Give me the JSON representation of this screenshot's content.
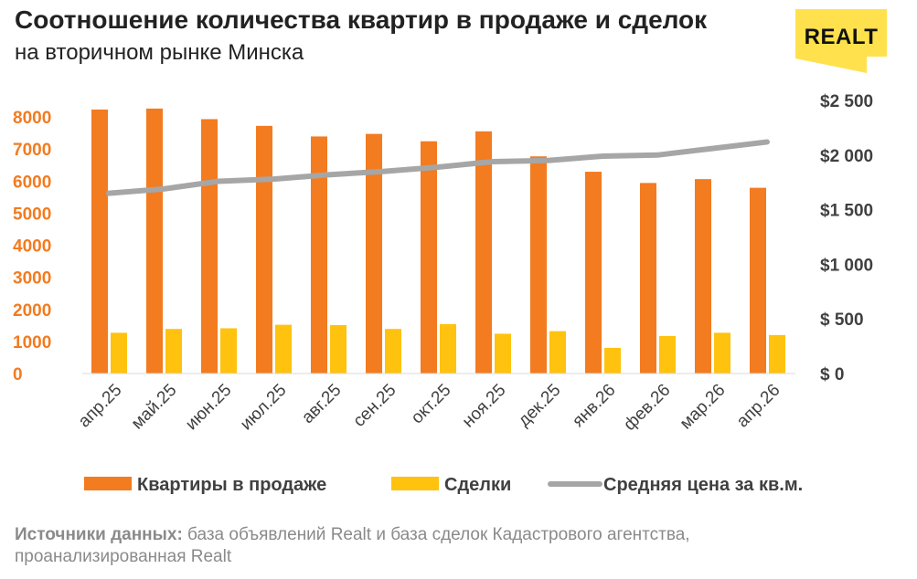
{
  "header": {
    "title": "Соотношение количества квартир в продаже и сделок",
    "subtitle": "на вторичном рынке Минска",
    "logo_text": "REALT"
  },
  "source": {
    "label": "Источники данных:",
    "text": " база объявлений Realt и база сделок Кадастрового агентства, проанализированная Realt"
  },
  "colors": {
    "listings": "#F37B20",
    "deals": "#FFC20E",
    "price": "#A6A6A6",
    "logo_bg": "#FFE14D"
  },
  "chart_data": {
    "type": "bar",
    "categories": [
      "апр.25",
      "май.25",
      "июн.25",
      "июл.25",
      "авг.25",
      "сен.25",
      "окт.25",
      "ноя.25",
      "дек.25",
      "янв.26",
      "фев.26",
      "мар.26",
      "апр.26"
    ],
    "series": [
      {
        "name": "Квартиры в продаже",
        "type": "bar",
        "axis": "left",
        "values": [
          8230,
          8260,
          7930,
          7720,
          7390,
          7470,
          7240,
          7550,
          6770,
          6290,
          5940,
          6060,
          5790
        ]
      },
      {
        "name": "Сделки",
        "type": "bar",
        "axis": "left",
        "values": [
          1270,
          1390,
          1410,
          1520,
          1510,
          1390,
          1540,
          1240,
          1320,
          800,
          1170,
          1270,
          1200
        ]
      },
      {
        "name": "Средняя цена за кв.м.",
        "type": "line",
        "axis": "right",
        "values": [
          1650,
          1690,
          1760,
          1780,
          1820,
          1850,
          1890,
          1940,
          1950,
          1990,
          2000,
          2060,
          2120
        ]
      }
    ],
    "y_left": {
      "min": 0,
      "max": 8000,
      "ticks": [
        "0",
        "1000",
        "2000",
        "3000",
        "4000",
        "5000",
        "6000",
        "7000",
        "8000"
      ]
    },
    "y_right": {
      "min": 0,
      "max": 2500,
      "ticks": [
        "$ 0",
        "$ 500",
        "$1 000",
        "$1 500",
        "$2 000",
        "$2 500"
      ]
    },
    "legend_position": "bottom",
    "grid": false
  }
}
